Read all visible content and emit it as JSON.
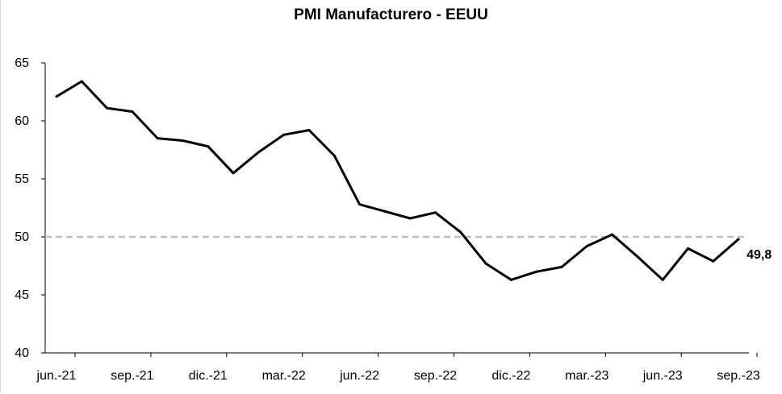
{
  "chart_data": {
    "type": "line",
    "title": "PMI Manufacturero - EEUU",
    "xlabel": "",
    "ylabel": "",
    "ylim": [
      40,
      65
    ],
    "yticks": [
      "40",
      "45",
      "50",
      "55",
      "60",
      "65"
    ],
    "xtick_labels": [
      "jun.-21",
      "sep.-21",
      "dic.-21",
      "mar.-22",
      "jun.-22",
      "sep.-22",
      "dic.-22",
      "mar.-23",
      "jun.-23",
      "sep.-23"
    ],
    "grid": false,
    "legend": "none",
    "x": [
      "2021-06",
      "2021-07",
      "2021-08",
      "2021-09",
      "2021-10",
      "2021-11",
      "2021-12",
      "2022-01",
      "2022-02",
      "2022-03",
      "2022-04",
      "2022-05",
      "2022-06",
      "2022-07",
      "2022-08",
      "2022-09",
      "2022-10",
      "2022-11",
      "2022-12",
      "2023-01",
      "2023-02",
      "2023-03",
      "2023-04",
      "2023-05",
      "2023-06",
      "2023-07",
      "2023-08",
      "2023-09"
    ],
    "series": [
      {
        "values": [
          62.1,
          63.4,
          61.1,
          60.8,
          58.5,
          58.3,
          57.8,
          55.5,
          57.3,
          58.8,
          59.2,
          57.0,
          52.8,
          52.2,
          51.6,
          52.1,
          50.4,
          47.7,
          46.3,
          47.0,
          47.4,
          49.2,
          50.2,
          48.3,
          46.3,
          49.0,
          47.9,
          49.8
        ],
        "color": "#000000"
      }
    ],
    "reference_line": {
      "value": 50,
      "color": "#bfbfbf",
      "style": "dashed"
    },
    "last_value_label": "49,8"
  }
}
